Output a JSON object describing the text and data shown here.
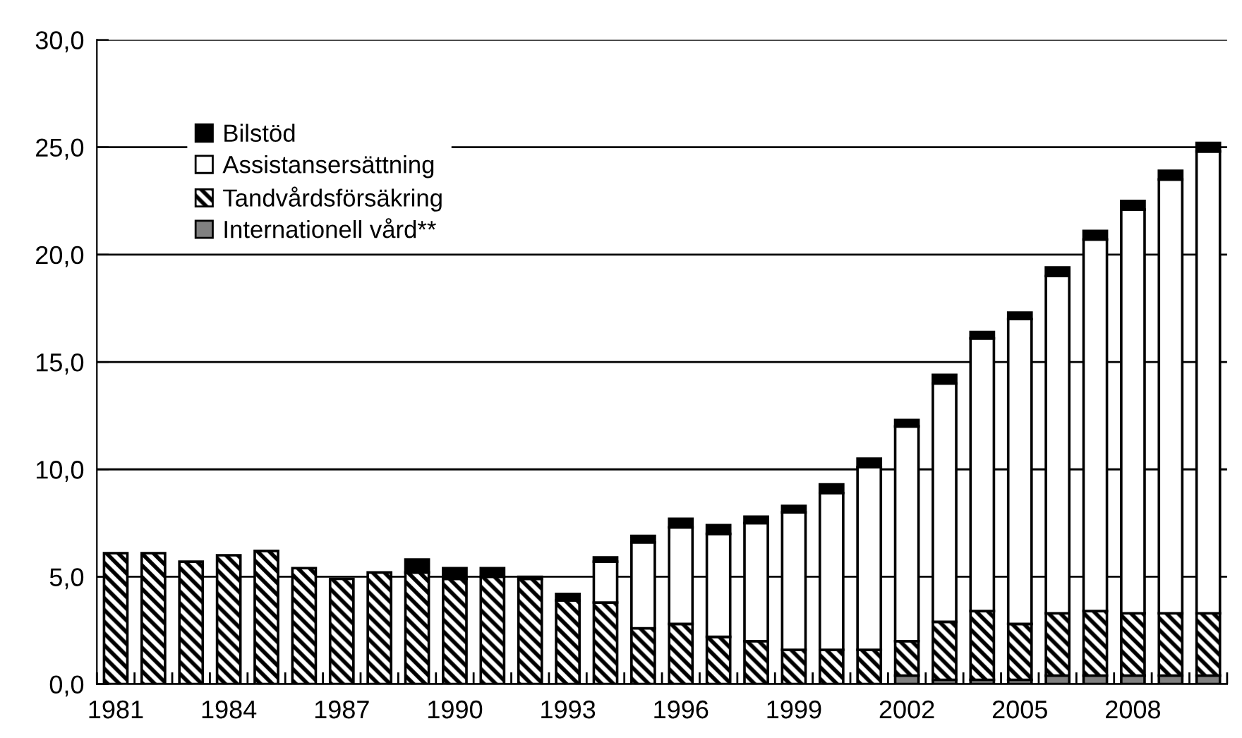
{
  "chart_data": {
    "type": "bar",
    "stacked": true,
    "categories": [
      "1981",
      null,
      null,
      "1984",
      null,
      null,
      "1987",
      null,
      null,
      "1990",
      null,
      null,
      "1993",
      null,
      null,
      "1996",
      null,
      null,
      "1999",
      null,
      null,
      "2002",
      null,
      null,
      "2005",
      null,
      null,
      "2008",
      null,
      null
    ],
    "series": [
      {
        "name": "Internationell vård**",
        "color": "#808080",
        "values": [
          0,
          0,
          0,
          0,
          0,
          0,
          0,
          0,
          0,
          0,
          0,
          0,
          0,
          0,
          0,
          0,
          0,
          0,
          0,
          0,
          0,
          0.4,
          0.2,
          0.2,
          0.2,
          0.4,
          0.4,
          0.4,
          0.4,
          0.4
        ]
      },
      {
        "name": "Tandvårdsförsäkring",
        "color": "#000000",
        "values": [
          6.1,
          6.1,
          5.7,
          6.0,
          6.2,
          5.4,
          4.9,
          5.2,
          5.2,
          4.9,
          5.0,
          4.9,
          3.9,
          3.8,
          2.6,
          2.8,
          2.2,
          2.0,
          1.6,
          1.6,
          1.6,
          1.6,
          2.7,
          3.2,
          2.6,
          2.9,
          3.0,
          2.9,
          2.9,
          2.9
        ]
      },
      {
        "name": "Assistansersättning",
        "color": "#ffffff",
        "values": [
          0,
          0,
          0,
          0,
          0,
          0,
          0,
          0,
          0,
          0,
          0,
          0,
          0,
          1.9,
          4.0,
          4.5,
          4.8,
          5.5,
          6.4,
          7.3,
          8.5,
          10.0,
          11.1,
          12.7,
          14.2,
          15.7,
          17.3,
          18.8,
          20.2,
          21.5
        ]
      },
      {
        "name": "Bilstöd",
        "color": "#000000",
        "values": [
          0,
          0,
          0,
          0,
          0,
          0,
          0,
          0,
          0.6,
          0.5,
          0.4,
          0.1,
          0.3,
          0.2,
          0.3,
          0.4,
          0.4,
          0.3,
          0.3,
          0.4,
          0.4,
          0.3,
          0.4,
          0.3,
          0.3,
          0.4,
          0.4,
          0.4,
          0.4,
          0.4
        ]
      }
    ],
    "ylim": [
      0,
      30
    ],
    "yticks": [
      {
        "value": 0,
        "label": "0,0"
      },
      {
        "value": 5,
        "label": "5,0"
      },
      {
        "value": 10,
        "label": "10,0"
      },
      {
        "value": 15,
        "label": "15,0"
      },
      {
        "value": 20,
        "label": "20,0"
      },
      {
        "value": 25,
        "label": "25,0"
      },
      {
        "value": 30,
        "label": "30,0"
      }
    ],
    "grid": "y",
    "legend": "top left"
  }
}
